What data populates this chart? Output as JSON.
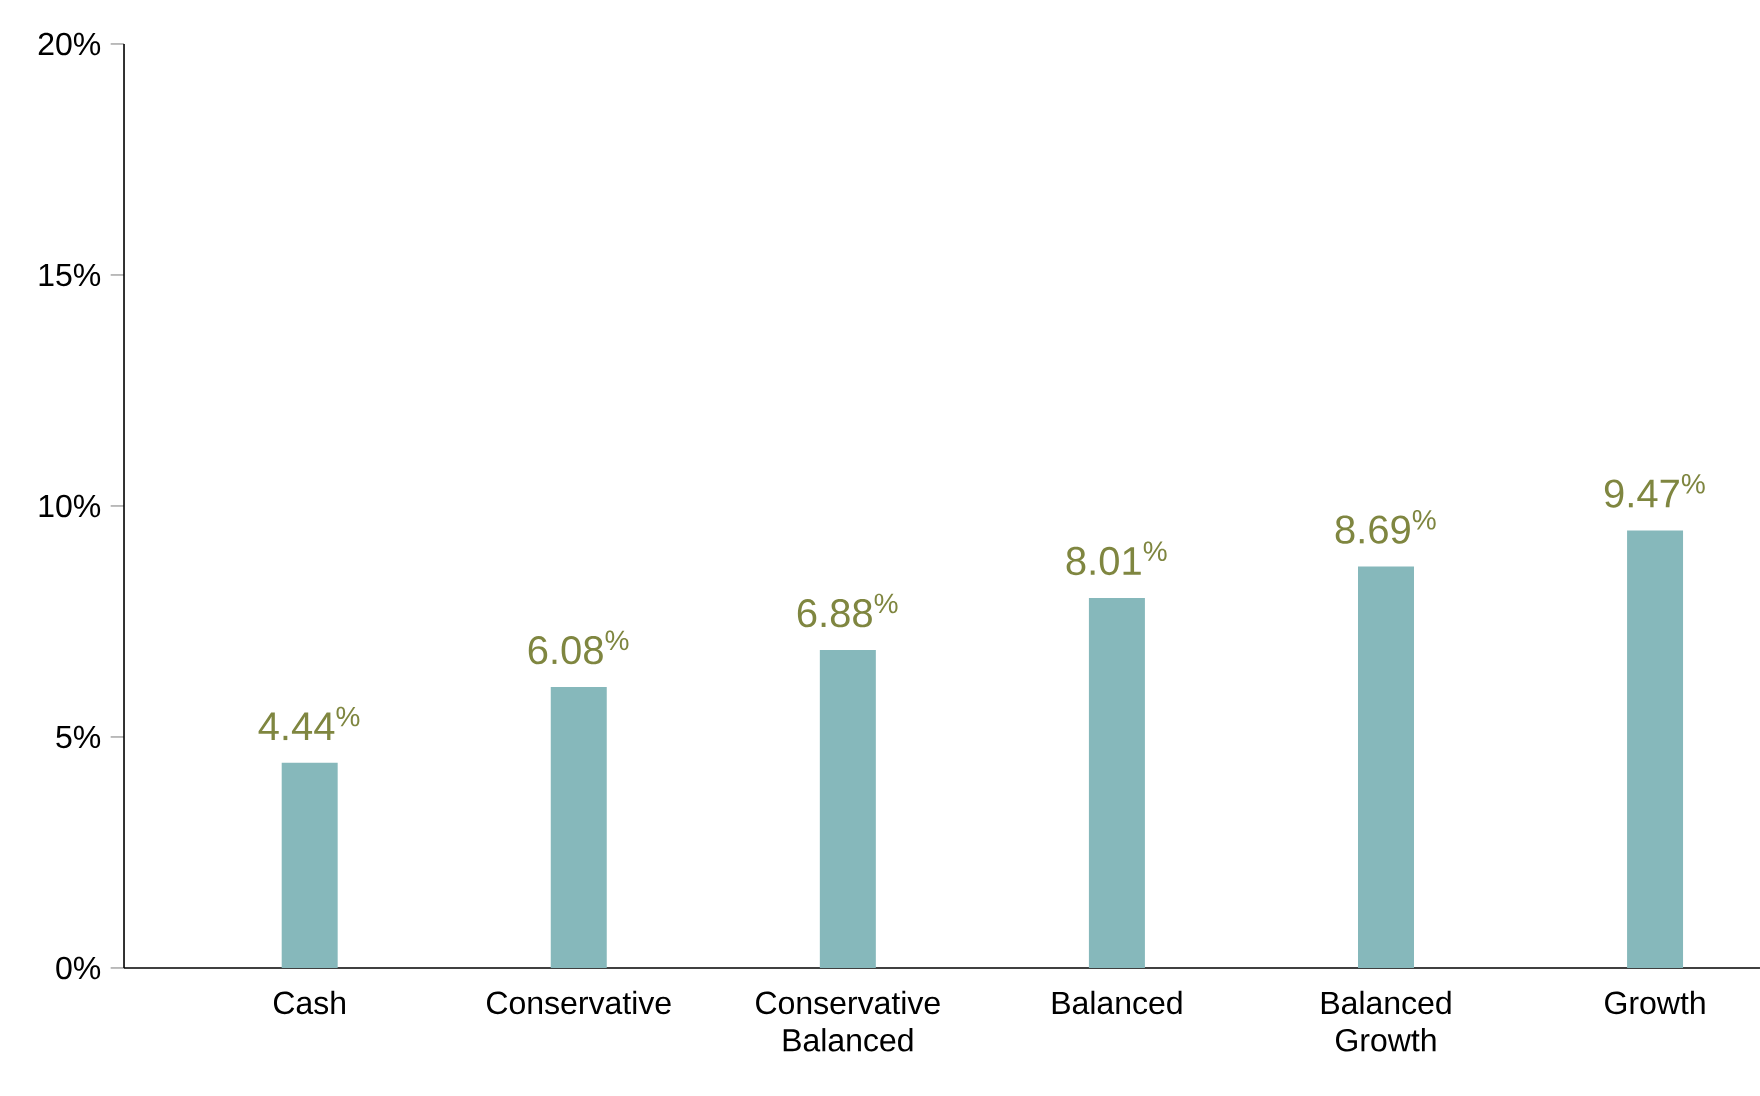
{
  "chart_data": {
    "type": "bar",
    "categories": [
      "Cash",
      "Conservative",
      "Conservative Balanced",
      "Balanced",
      "Balanced Growth",
      "Growth"
    ],
    "values": [
      4.44,
      6.08,
      6.88,
      8.01,
      8.69,
      9.47
    ],
    "value_labels": [
      "4.44$^{%}$",
      "6.08$^{%}$",
      "6.88$^{%}$",
      "8.01$^{%}$",
      "8.69$^{%}$",
      "9.47$^{%}$"
    ],
    "color": "#86b8bb",
    "ylim": [
      0,
      20
    ],
    "yticks": [
      {
        "value": 0,
        "label": "0%"
      },
      {
        "value": 5,
        "label": "5%"
      },
      {
        "value": 10,
        "label": "10%"
      },
      {
        "value": 15,
        "label": "15%"
      },
      {
        "value": 20,
        "label": "20%"
      }
    ],
    "grid": false
  }
}
